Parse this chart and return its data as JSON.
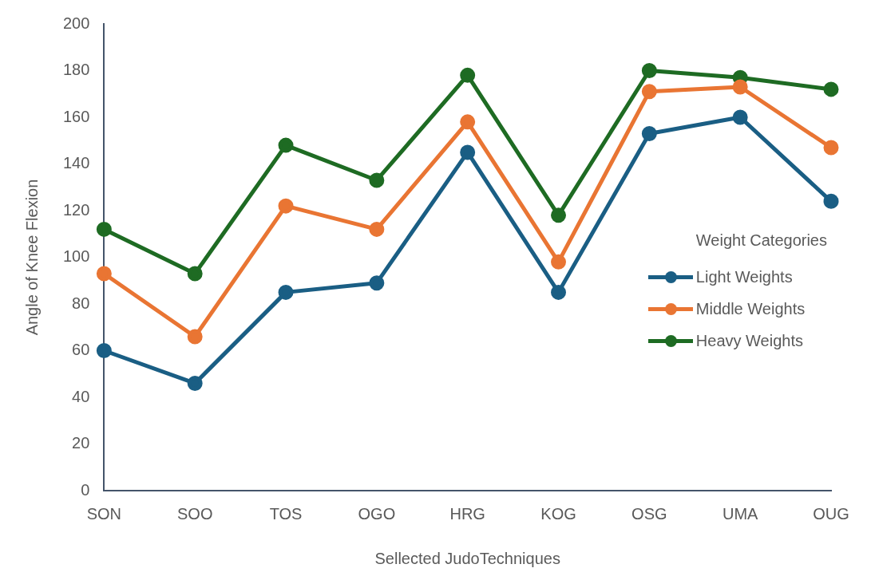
{
  "chart_data": {
    "type": "line",
    "xlabel": "Sellected JudoTechniques",
    "ylabel": "Angle of Knee Flexion",
    "legend_title": "Weight Categories",
    "categories": [
      "SON",
      "SOO",
      "TOS",
      "OGO",
      "HRG",
      "KOG",
      "OSG",
      "UMA",
      "OUG"
    ],
    "series": [
      {
        "name": "Light Weights",
        "color": "#1a5e84",
        "values": [
          60,
          46,
          85,
          89,
          145,
          85,
          153,
          160,
          124
        ]
      },
      {
        "name": "Middle Weights",
        "color": "#e97533",
        "values": [
          93,
          66,
          122,
          112,
          158,
          98,
          171,
          173,
          147
        ]
      },
      {
        "name": "Heavy Weights",
        "color": "#1e6b23",
        "values": [
          112,
          93,
          148,
          133,
          178,
          118,
          180,
          177,
          172
        ]
      }
    ],
    "ylim": [
      0,
      200
    ],
    "yticks": [
      0,
      20,
      40,
      60,
      80,
      100,
      120,
      140,
      160,
      180,
      200
    ],
    "grid": false,
    "legend": "right",
    "marker": "circle",
    "line_style": "solid"
  }
}
